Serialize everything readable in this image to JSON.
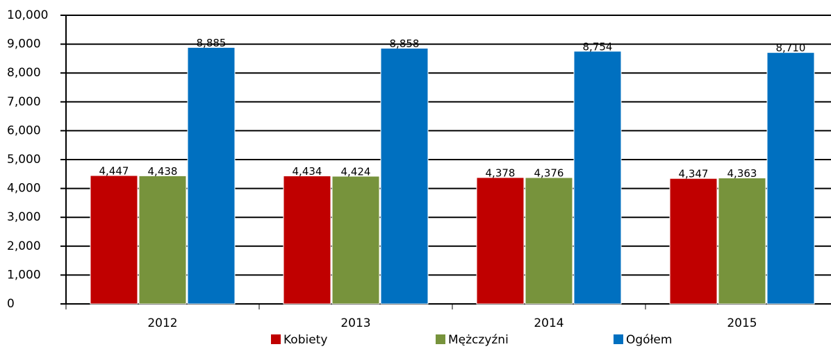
{
  "chart_data": {
    "type": "bar",
    "categories": [
      "2012",
      "2013",
      "2014",
      "2015"
    ],
    "series": [
      {
        "name": "Kobiety",
        "color": "#c00000",
        "values": [
          4447,
          4434,
          4378,
          4347
        ],
        "value_labels": [
          "4,447",
          "4,434",
          "4,378",
          "4,347"
        ]
      },
      {
        "name": "Mężczyźni",
        "color": "#77933c",
        "values": [
          4438,
          4424,
          4376,
          4363
        ],
        "value_labels": [
          "4,438",
          "4,424",
          "4,376",
          "4,363"
        ]
      },
      {
        "name": "Ogółem",
        "color": "#0070c0",
        "values": [
          8885,
          8858,
          8754,
          8710
        ],
        "value_labels": [
          "8,885",
          "8,858",
          "8,754",
          "8,710"
        ]
      }
    ],
    "ylim": [
      0,
      10000
    ],
    "yticks": [
      0,
      {
        "value": 1000,
        "label": "1,000"
      },
      {
        "value": 2000,
        "label": "2,000"
      },
      {
        "value": 3000,
        "label": "3,000"
      },
      {
        "value": 4000,
        "label": "4,000"
      },
      {
        "value": 5000,
        "label": "5,000"
      },
      {
        "value": 6000,
        "label": "6,000"
      },
      {
        "value": 7000,
        "label": "7,000"
      },
      {
        "value": 8000,
        "label": "8,000"
      },
      {
        "value": 9000,
        "label": "9,000"
      },
      {
        "value": 10000,
        "label": "10,000"
      }
    ],
    "grid": true,
    "legend": "bottom"
  }
}
